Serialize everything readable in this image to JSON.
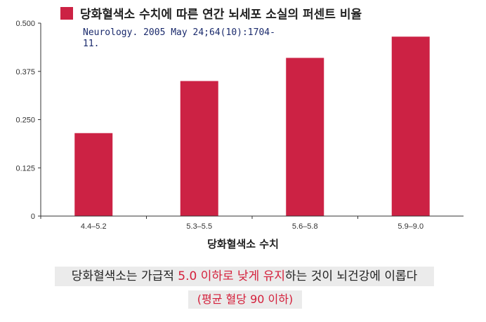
{
  "chart_data": {
    "type": "bar",
    "title": "당화혈색소 수치에 따른 연간 뇌세포 소실의 퍼센트 비율",
    "source": "Neurology. 2005 May 24;64(10):1704-11.",
    "source_line1": "Neurology. 2005 May 24;64(10):1704-",
    "source_line2": "11.",
    "xlabel": "당화혈색소 수치",
    "ylabel": "",
    "categories": [
      "4.4–5.2",
      "5.3–5.5",
      "5.6–5.8",
      "5.9–9.0"
    ],
    "values": [
      0.215,
      0.35,
      0.41,
      0.465
    ],
    "ylim": [
      0,
      0.5
    ],
    "yticks": [
      "0",
      "0.125",
      "0.250",
      "0.375",
      "0.500"
    ],
    "ytick_values": [
      0,
      0.125,
      0.25,
      0.375,
      0.5
    ],
    "grid": false,
    "legend": "top-left",
    "color": "#cc2244"
  },
  "caption": {
    "part1": "당화혈색소는 가급적 ",
    "highlight": "5.0 이하로 낮게 유지",
    "part2": "하는 것이 뇌건강에 이롭다",
    "line2": "(평균 혈당 90 이하)"
  }
}
